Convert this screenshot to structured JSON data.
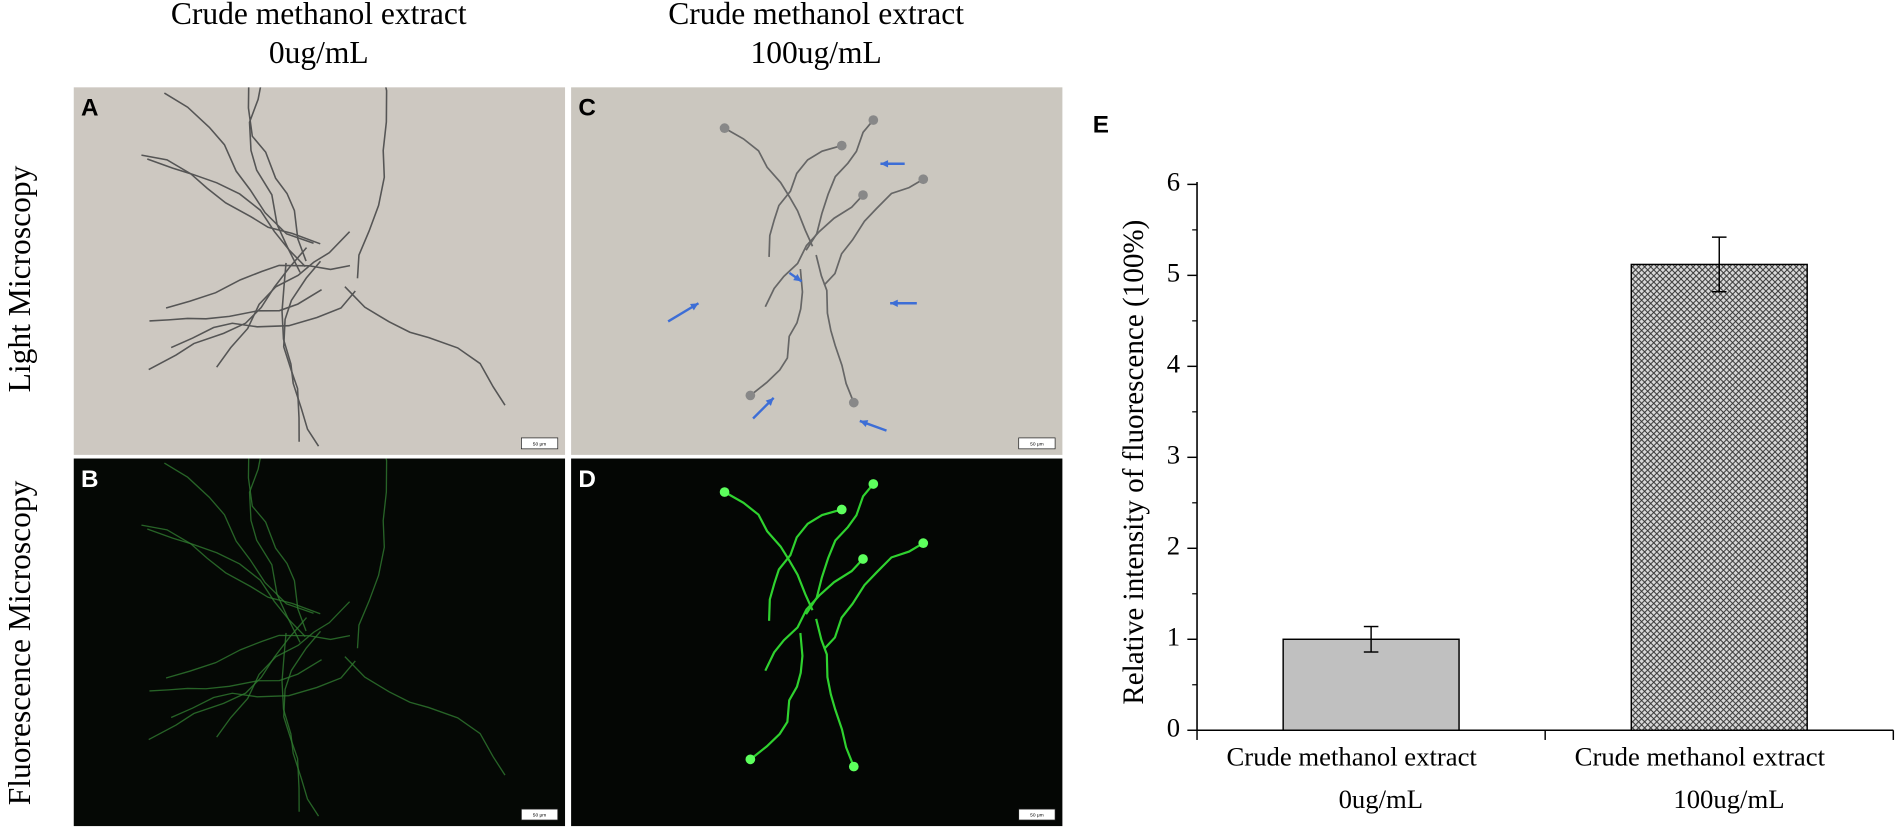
{
  "columns": [
    {
      "title": "Crude methanol extract",
      "subtitle": "0ug/mL"
    },
    {
      "title": "Crude methanol extract",
      "subtitle": "100ug/mL"
    }
  ],
  "rows": [
    "Light Microscopy",
    "Fluorescence Microscopy"
  ],
  "panels": [
    {
      "label": "A",
      "scale_bar": "50 μm"
    },
    {
      "label": "B",
      "scale_bar": "50 μm"
    },
    {
      "label": "C",
      "scale_bar": "50 μm"
    },
    {
      "label": "D",
      "scale_bar": "50 μm"
    }
  ],
  "chart_data": {
    "type": "bar",
    "label": "E",
    "y_label": "Relative intensity of fluorescence (100%)",
    "categories": [
      [
        "Crude methanol extract",
        "0ug/mL"
      ],
      [
        "Crude methanol extract",
        "100ug/mL"
      ]
    ],
    "values": [
      1.0,
      5.12
    ],
    "errors": [
      0.14,
      0.3
    ],
    "colors": [
      "#c0c0c0",
      "#9a9a9a"
    ],
    "hatch": [
      false,
      true
    ],
    "ylim": [
      0,
      6
    ],
    "yticks": [
      0,
      1,
      2,
      3,
      4,
      5,
      6
    ]
  }
}
